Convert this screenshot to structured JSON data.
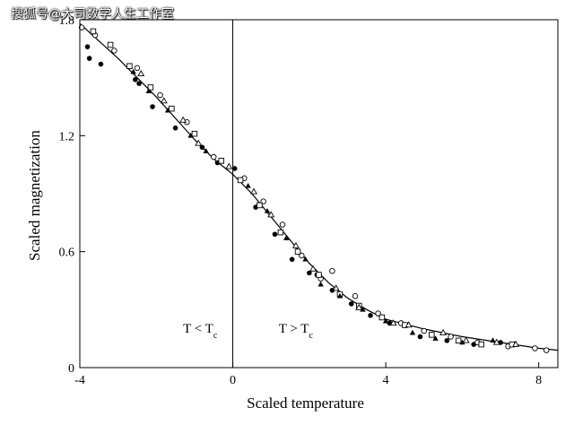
{
  "watermark": "搜狐号@大司数学人生工作室",
  "chart_data": {
    "type": "scatter",
    "title": "",
    "xlabel": "Scaled temperature",
    "ylabel": "Scaled magnetization",
    "xlim": [
      -4,
      8.5
    ],
    "ylim": [
      0,
      1.8
    ],
    "x_ticks": [
      -4,
      0,
      4,
      8
    ],
    "y_ticks": [
      0,
      0.6,
      1.2,
      1.8
    ],
    "x_tick_labels": [
      "-4",
      "0",
      "4",
      "8"
    ],
    "y_tick_labels": [
      "0",
      "0.6",
      "1.2",
      "1.8"
    ],
    "annotations": [
      {
        "text": "T < T",
        "sub": "c",
        "x": -1.3,
        "y": 0.18
      },
      {
        "text": "T > T",
        "sub": "c",
        "x": 1.2,
        "y": 0.18
      }
    ],
    "divider_x": 0,
    "fit_curve": {
      "name": "theory",
      "x": [
        -4,
        -3.5,
        -3,
        -2.5,
        -2,
        -1.5,
        -1,
        -0.5,
        0,
        0.5,
        1,
        1.5,
        2,
        2.5,
        3,
        3.5,
        4,
        5,
        6,
        7,
        8,
        8.5
      ],
      "y": [
        1.78,
        1.69,
        1.6,
        1.5,
        1.4,
        1.29,
        1.18,
        1.08,
        1.0,
        0.9,
        0.78,
        0.66,
        0.54,
        0.44,
        0.36,
        0.3,
        0.25,
        0.2,
        0.16,
        0.13,
        0.1,
        0.09
      ]
    },
    "series": [
      {
        "name": "filled circles",
        "marker": "filled-circle",
        "x": [
          -3.8,
          -3.75,
          -3.45,
          -2.55,
          -2.45,
          -2.1,
          -1.5,
          -0.8,
          -0.4,
          0.05,
          0.6,
          1.1,
          1.55,
          2.0,
          2.2,
          2.6,
          3.1,
          3.6,
          4.1,
          4.9,
          5.6,
          6.3,
          7.0
        ],
        "y": [
          1.66,
          1.6,
          1.57,
          1.49,
          1.47,
          1.35,
          1.24,
          1.14,
          1.06,
          1.03,
          0.83,
          0.69,
          0.56,
          0.49,
          0.48,
          0.4,
          0.33,
          0.27,
          0.23,
          0.16,
          0.14,
          0.12,
          0.13
        ]
      },
      {
        "name": "open circles",
        "marker": "open-circle",
        "x": [
          -3.95,
          -3.6,
          -3.1,
          -2.5,
          -1.9,
          -1.2,
          -0.5,
          0.3,
          0.8,
          1.3,
          1.8,
          2.3,
          2.6,
          3.2,
          3.8,
          4.4,
          5.0,
          5.7,
          6.4,
          7.2,
          7.9,
          8.2
        ],
        "y": [
          1.76,
          1.72,
          1.64,
          1.55,
          1.41,
          1.27,
          1.09,
          0.98,
          0.86,
          0.74,
          0.58,
          0.46,
          0.5,
          0.37,
          0.28,
          0.23,
          0.19,
          0.16,
          0.13,
          0.11,
          0.1,
          0.09
        ]
      },
      {
        "name": "open squares",
        "marker": "open-square",
        "x": [
          -3.65,
          -3.2,
          -2.7,
          -2.15,
          -1.6,
          -1.0,
          -0.3,
          0.2,
          0.7,
          1.25,
          1.7,
          2.25,
          2.8,
          3.3,
          3.9,
          4.5,
          5.2,
          5.9,
          6.5,
          7.3
        ],
        "y": [
          1.74,
          1.67,
          1.56,
          1.45,
          1.34,
          1.21,
          1.07,
          0.97,
          0.84,
          0.7,
          0.6,
          0.48,
          0.38,
          0.32,
          0.26,
          0.22,
          0.17,
          0.14,
          0.12,
          0.12
        ]
      },
      {
        "name": "filled triangles",
        "marker": "filled-triangle",
        "x": [
          -2.6,
          -2.2,
          -1.7,
          -1.1,
          -0.7,
          0.4,
          0.9,
          1.4,
          1.9,
          2.3,
          2.8,
          3.4,
          4.0,
          4.7,
          5.3,
          6.0,
          6.8
        ],
        "y": [
          1.53,
          1.43,
          1.33,
          1.2,
          1.12,
          0.94,
          0.81,
          0.67,
          0.56,
          0.43,
          0.37,
          0.3,
          0.24,
          0.18,
          0.15,
          0.13,
          0.14
        ]
      },
      {
        "name": "open triangles",
        "marker": "open-triangle",
        "x": [
          -2.4,
          -1.8,
          -1.3,
          -0.9,
          -0.1,
          0.55,
          1.0,
          1.65,
          2.1,
          2.7,
          3.3,
          4.2,
          4.6,
          5.5,
          6.1,
          6.9,
          7.4
        ],
        "y": [
          1.52,
          1.38,
          1.28,
          1.16,
          1.04,
          0.91,
          0.79,
          0.63,
          0.51,
          0.41,
          0.31,
          0.23,
          0.22,
          0.18,
          0.14,
          0.13,
          0.12
        ]
      }
    ]
  }
}
